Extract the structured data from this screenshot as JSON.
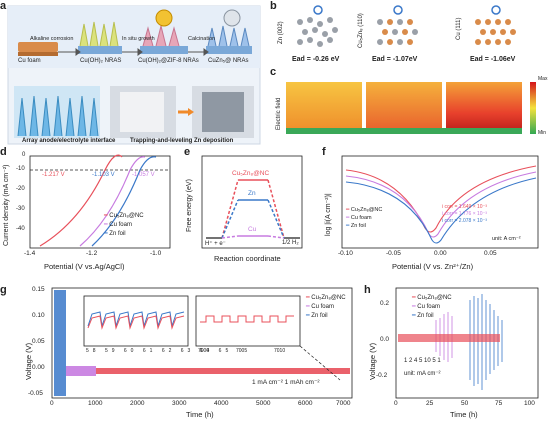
{
  "panels": {
    "a": {
      "label": "a",
      "stages": [
        "Cu foam",
        "Cu(OH)₂ NRAS",
        "Cu(OH)₂@ZIF-8 NRAs",
        "CuZn₅@ NRAs"
      ],
      "steps": [
        "Alkaline corrosion",
        "In situ growth",
        "Calcination"
      ],
      "bottom_left": "Array anode/electrolyte interface",
      "bottom_right": "Trapping-and-leveling Zn deposition"
    },
    "b": {
      "label": "b",
      "facets": [
        {
          "vertical": "Zn (002)",
          "ead": "Ead = -0.26 eV"
        },
        {
          "vertical": "Cu₅Zn₈ (110)",
          "ead": "Ead = -1.07eV"
        },
        {
          "vertical": "Cu (111)",
          "ead": "Ead = -1.06eV"
        }
      ]
    },
    "c": {
      "label": "c",
      "side": "Electric field",
      "max": "Max",
      "min": "Min"
    },
    "d": {
      "label": "d",
      "ylabel": "Current density (mA cm⁻²)",
      "xlabel": "Potential (V vs.Ag/AgCl)",
      "xticks": [
        "-1.4",
        "-1.2",
        "-1.0"
      ],
      "yticks": [
        "0",
        "-10",
        "-20",
        "-30",
        "-40"
      ],
      "annotations": [
        "-1.217 V",
        "-1.103 V",
        "-1.057 V"
      ],
      "legend": [
        "Cu₅Zn₈@NC",
        "Cu foam",
        "Zn foil"
      ]
    },
    "e": {
      "label": "e",
      "ylabel": "Free energy (eV)",
      "xlabel": "Reaction coordinate",
      "yticks": [
        "2.0",
        "1.5",
        "1.0",
        "0.5",
        "0.0"
      ],
      "left_state": "H⁺ + e⁻",
      "right_state": "1/2 H₂",
      "levels": [
        "Cu₅Zn₈@NC",
        "Zn",
        "Cu"
      ]
    },
    "f": {
      "label": "f",
      "ylabel": "log |i(A cm⁻²)|",
      "xlabel": "Potential (V vs. Zn²⁺/Zn)",
      "xticks": [
        "-0.10",
        "-0.05",
        "0.00",
        "0.05"
      ],
      "yticks": [
        "-2",
        "-3",
        "-4",
        "-5",
        "-6"
      ],
      "legend": [
        "Cu₅Zn₈@NC",
        "Cu foam",
        "Zn foil"
      ],
      "icorr": [
        "i corr = 1.649 × 10⁻³",
        "i corr = 1.776 × 10⁻³",
        "i corr = 2.078 × 10⁻³"
      ],
      "unit": "unit: A cm⁻²"
    },
    "g": {
      "label": "g",
      "ylabel": "Voltage (V)",
      "xlabel": "Time (h)",
      "xticks": [
        "0",
        "1000",
        "2000",
        "3000",
        "4000",
        "5000",
        "6000",
        "7000"
      ],
      "yticks": [
        "0.15",
        "0.10",
        "0.05",
        "0.00",
        "-0.05"
      ],
      "inset1_ticks": [
        "58",
        "59",
        "60",
        "61",
        "62",
        "63",
        "64",
        "65"
      ],
      "inset2_ticks": [
        "7000",
        "7005",
        "7010"
      ],
      "legend": [
        "Cu₅Zn₈@NC",
        "Cu foam",
        "Zn foil"
      ],
      "condition": "1 mA cm⁻² 1 mAh cm⁻²"
    },
    "h": {
      "label": "h",
      "ylabel": "Voltage (V)",
      "xlabel": "Time (h)",
      "xticks": [
        "0",
        "25",
        "50",
        "75",
        "100"
      ],
      "yticks": [
        "0.2",
        "0.0",
        "-0.2"
      ],
      "legend": [
        "Cu₅Zn₈@NC",
        "Cu foam",
        "Zn foil"
      ],
      "rates": "1    2   4 5 10 5 1",
      "unit": "unit: mA cm⁻²"
    }
  },
  "colors": {
    "cuzn": "#e8505b",
    "cufoam": "#c77be0",
    "znfoil": "#3a78c9"
  }
}
